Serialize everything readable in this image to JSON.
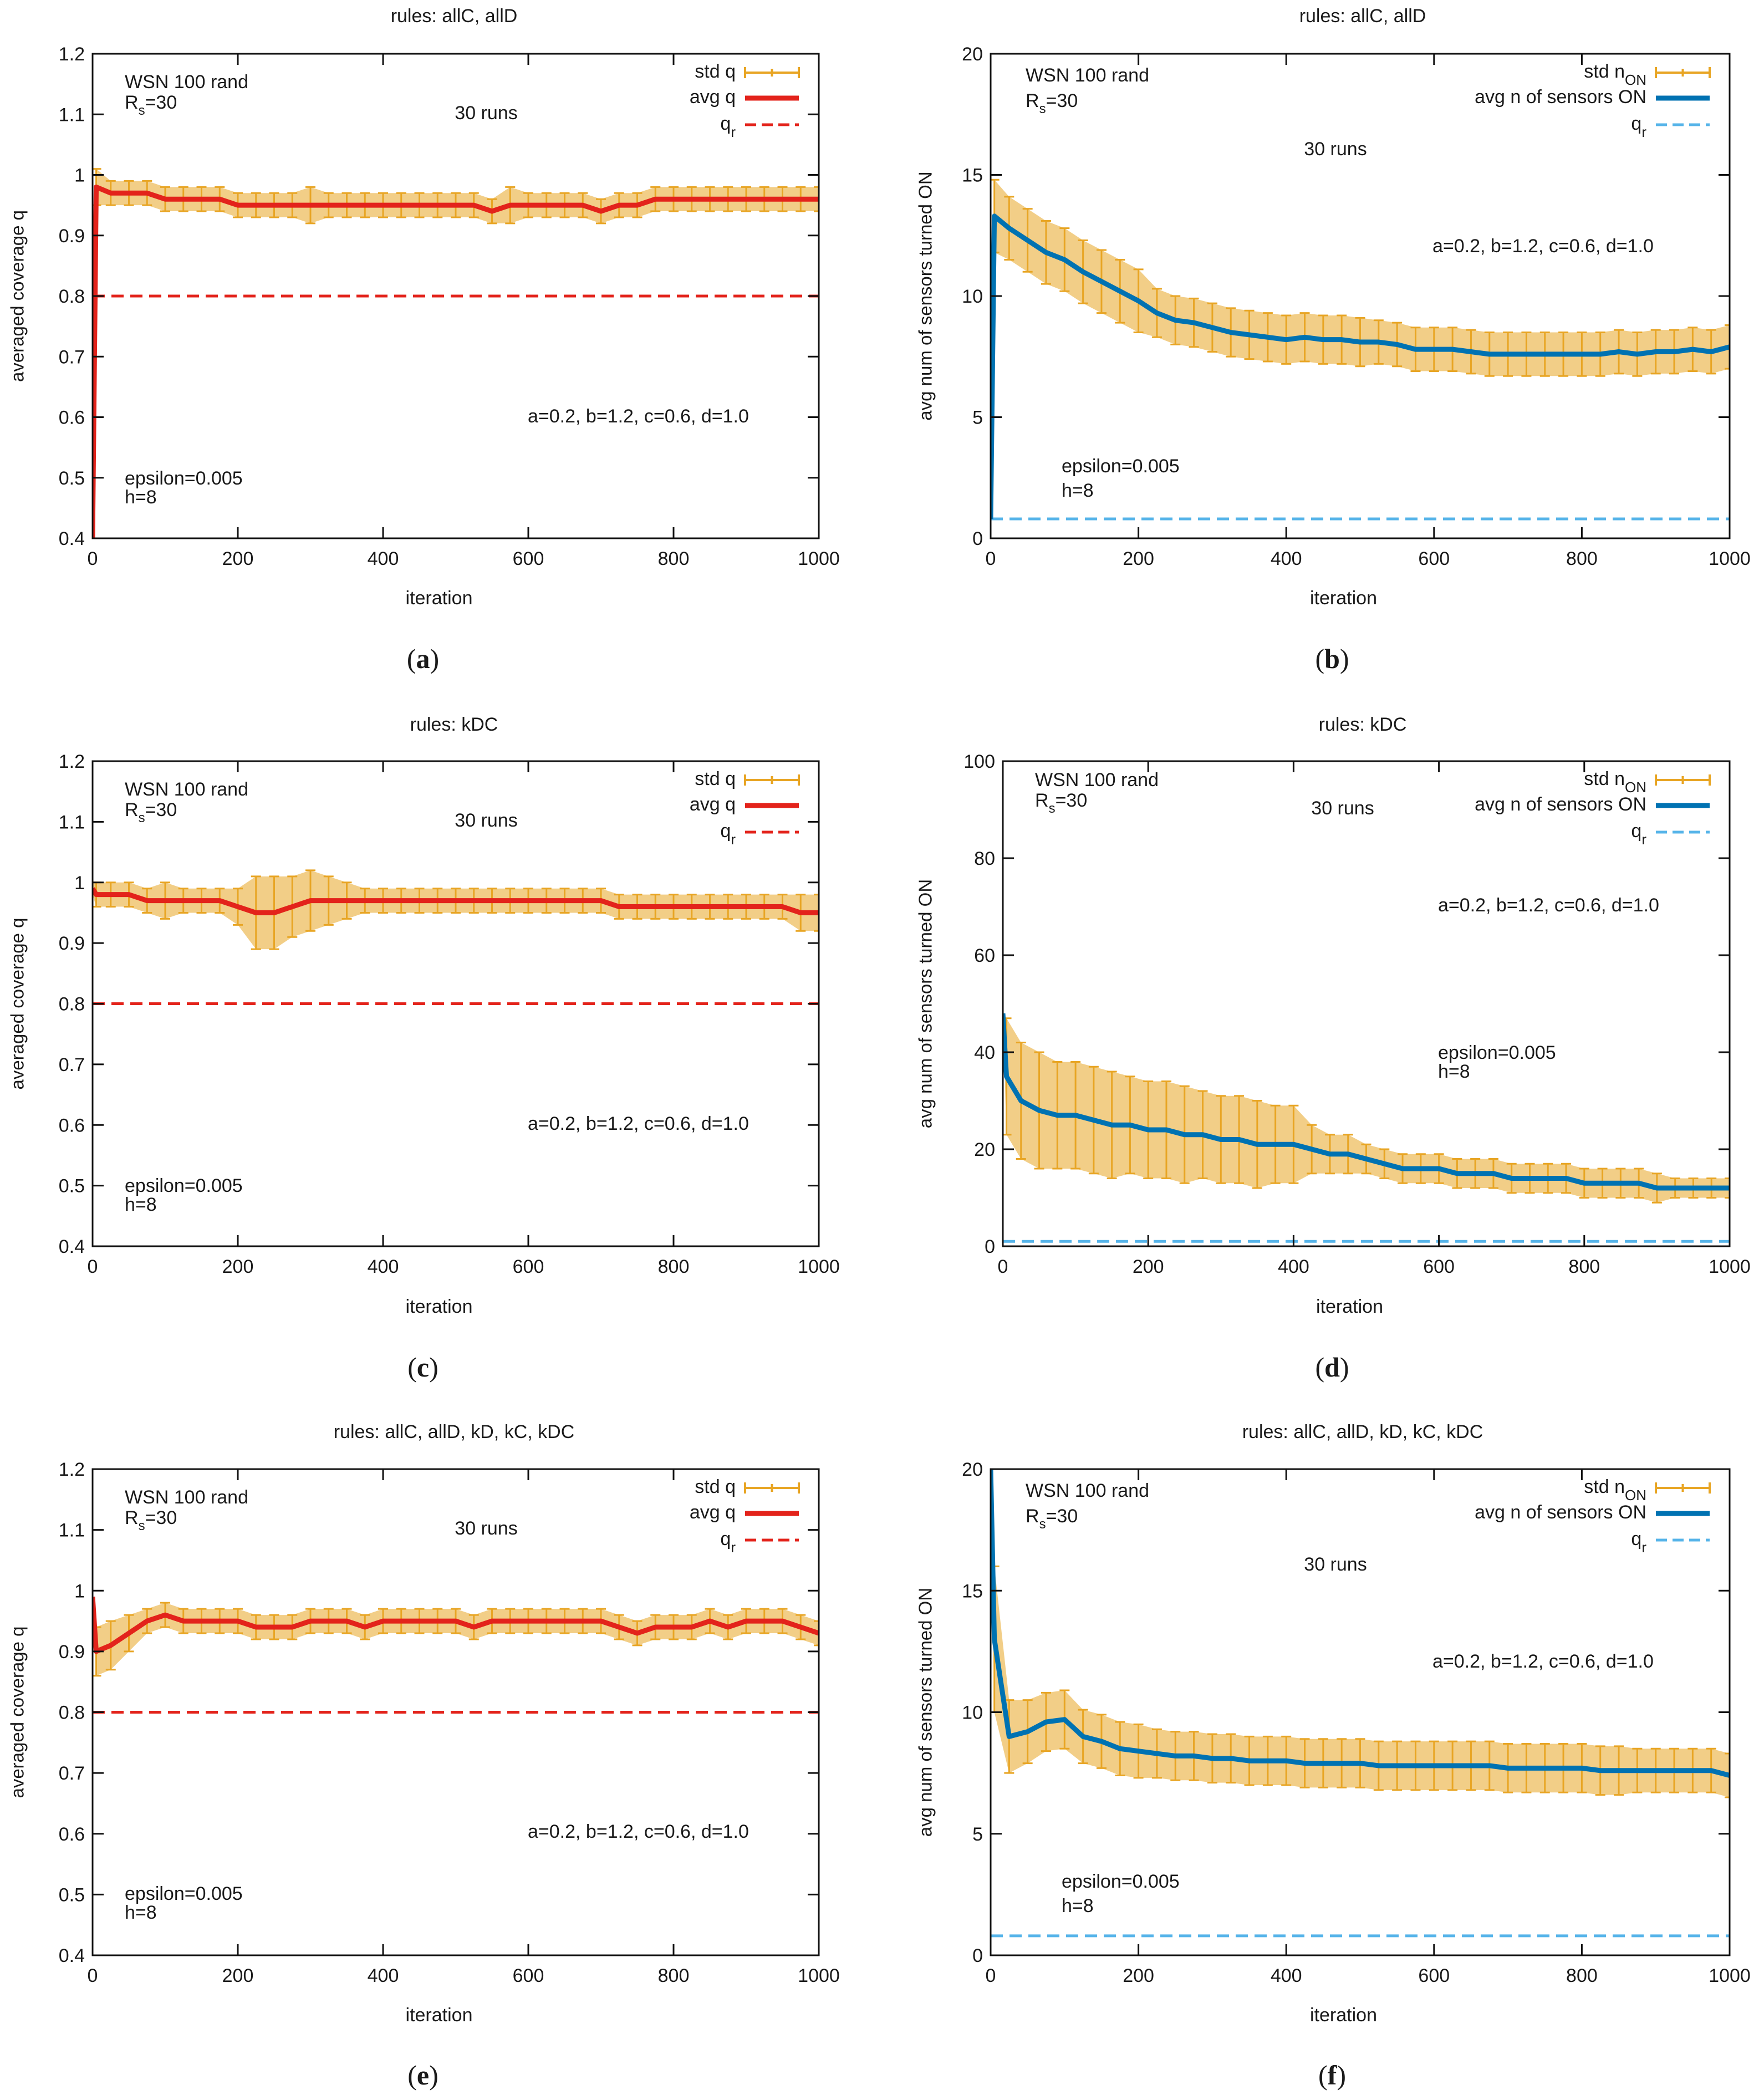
{
  "chart_data": [
    {
      "type": "line",
      "panel": "a",
      "title": "rules: allC, allD",
      "xlabel": "iteration",
      "ylabel": "averaged coverage q",
      "xlim": [
        0,
        1000
      ],
      "ylim": [
        0.4,
        1.2
      ],
      "xticks": [
        0,
        200,
        400,
        600,
        800,
        1000
      ],
      "yticks": [
        0.4,
        0.5,
        0.6,
        0.7,
        0.8,
        0.9,
        1,
        1.1,
        1.2
      ],
      "grid": false,
      "legend_position": "top-right",
      "legend": [
        {
          "text": "std q",
          "sub": "",
          "kind": "errorbar"
        },
        {
          "text": "avg q",
          "sub": "",
          "kind": "line"
        },
        {
          "text": "q",
          "sub": "r",
          "kind": "dashed"
        }
      ],
      "annotations": {
        "wsn": "WSN 100 rand",
        "rs": {
          "text": "R",
          "sub": "s",
          "after": "=30"
        },
        "runs": "30 runs",
        "params": "a=0.2, b=1.2, c=0.6, d=1.0",
        "eps": "epsilon=0.005",
        "h": "h=8"
      },
      "reference_line": 0.8,
      "colors": {
        "avg": "#e3231b",
        "std": "#e8a524",
        "ref": "#e3231b"
      },
      "x": [
        0,
        5,
        25,
        50,
        75,
        100,
        125,
        150,
        175,
        200,
        225,
        250,
        275,
        300,
        325,
        350,
        375,
        400,
        425,
        450,
        475,
        500,
        525,
        550,
        575,
        600,
        625,
        650,
        675,
        700,
        725,
        750,
        775,
        800,
        825,
        850,
        875,
        900,
        925,
        950,
        975,
        1000
      ],
      "avg": [
        0.4,
        0.98,
        0.97,
        0.97,
        0.97,
        0.96,
        0.96,
        0.96,
        0.96,
        0.95,
        0.95,
        0.95,
        0.95,
        0.95,
        0.95,
        0.95,
        0.95,
        0.95,
        0.95,
        0.95,
        0.95,
        0.95,
        0.95,
        0.94,
        0.95,
        0.95,
        0.95,
        0.95,
        0.95,
        0.94,
        0.95,
        0.95,
        0.96,
        0.96,
        0.96,
        0.96,
        0.96,
        0.96,
        0.96,
        0.96,
        0.96,
        0.96
      ],
      "std": [
        0,
        0.03,
        0.02,
        0.02,
        0.02,
        0.02,
        0.02,
        0.02,
        0.02,
        0.02,
        0.02,
        0.02,
        0.02,
        0.03,
        0.02,
        0.02,
        0.02,
        0.02,
        0.02,
        0.02,
        0.02,
        0.02,
        0.02,
        0.02,
        0.03,
        0.02,
        0.02,
        0.02,
        0.02,
        0.02,
        0.02,
        0.02,
        0.02,
        0.02,
        0.02,
        0.02,
        0.02,
        0.02,
        0.02,
        0.02,
        0.02,
        0.02
      ]
    },
    {
      "type": "line",
      "panel": "b",
      "title": "rules: allC, allD",
      "xlabel": "iteration",
      "ylabel": "avg num of sensors turned ON",
      "xlim": [
        0,
        1000
      ],
      "ylim": [
        0,
        20
      ],
      "xticks": [
        0,
        200,
        400,
        600,
        800,
        1000
      ],
      "yticks": [
        0,
        5,
        10,
        15,
        20
      ],
      "grid": false,
      "legend_position": "top-right",
      "legend": [
        {
          "text": "std n",
          "sub": "ON",
          "kind": "errorbar"
        },
        {
          "text": "avg n of sensors ON",
          "sub": "",
          "kind": "line"
        },
        {
          "text": "q",
          "sub": "r",
          "kind": "dashed"
        }
      ],
      "annotations": {
        "wsn": "WSN 100 rand",
        "rs": {
          "text": "R",
          "sub": "s",
          "after": "=30"
        },
        "runs": "30 runs",
        "params": "a=0.2, b=1.2, c=0.6, d=1.0",
        "eps": "epsilon=0.005",
        "h": "h=8"
      },
      "reference_line": 0.8,
      "colors": {
        "avg": "#0072b2",
        "std": "#e8a524",
        "ref": "#56b4e9"
      },
      "x": [
        0,
        5,
        25,
        50,
        75,
        100,
        125,
        150,
        175,
        200,
        225,
        250,
        275,
        300,
        325,
        350,
        375,
        400,
        425,
        450,
        475,
        500,
        525,
        550,
        575,
        600,
        625,
        650,
        675,
        700,
        725,
        750,
        775,
        800,
        825,
        850,
        875,
        900,
        925,
        950,
        975,
        1000
      ],
      "avg": [
        0.8,
        13.3,
        12.8,
        12.3,
        11.8,
        11.5,
        11.0,
        10.6,
        10.2,
        9.8,
        9.3,
        9.0,
        8.9,
        8.7,
        8.5,
        8.4,
        8.3,
        8.2,
        8.3,
        8.2,
        8.2,
        8.1,
        8.1,
        8.0,
        7.8,
        7.8,
        7.8,
        7.7,
        7.6,
        7.6,
        7.6,
        7.6,
        7.6,
        7.6,
        7.6,
        7.7,
        7.6,
        7.7,
        7.7,
        7.8,
        7.7,
        7.9
      ],
      "std": [
        0,
        1.5,
        1.3,
        1.3,
        1.3,
        1.3,
        1.3,
        1.3,
        1.3,
        1.3,
        1.0,
        1.0,
        1.0,
        1.0,
        1.0,
        1.0,
        1.0,
        1.0,
        1.0,
        1.0,
        1.0,
        1.0,
        0.9,
        0.9,
        0.9,
        0.9,
        0.9,
        0.9,
        0.9,
        0.9,
        0.9,
        0.9,
        0.9,
        0.9,
        0.9,
        0.9,
        0.9,
        0.9,
        0.9,
        0.9,
        0.9,
        0.9
      ]
    },
    {
      "type": "line",
      "panel": "c",
      "title": "rules: kDC",
      "xlabel": "iteration",
      "ylabel": "averaged coverage q",
      "xlim": [
        0,
        1000
      ],
      "ylim": [
        0.4,
        1.2
      ],
      "xticks": [
        0,
        200,
        400,
        600,
        800,
        1000
      ],
      "yticks": [
        0.4,
        0.5,
        0.6,
        0.7,
        0.8,
        0.9,
        1,
        1.1,
        1.2
      ],
      "grid": false,
      "legend_position": "top-right",
      "legend": [
        {
          "text": "std q",
          "sub": "",
          "kind": "errorbar"
        },
        {
          "text": "avg q",
          "sub": "",
          "kind": "line"
        },
        {
          "text": "q",
          "sub": "r",
          "kind": "dashed"
        }
      ],
      "annotations": {
        "wsn": "WSN 100 rand",
        "rs": {
          "text": "R",
          "sub": "s",
          "after": "=30"
        },
        "runs": "30 runs",
        "params": "a=0.2, b=1.2, c=0.6, d=1.0",
        "eps": "epsilon=0.005",
        "h": "h=8"
      },
      "reference_line": 0.8,
      "colors": {
        "avg": "#e3231b",
        "std": "#e8a524",
        "ref": "#e3231b"
      },
      "x": [
        0,
        5,
        25,
        50,
        75,
        100,
        125,
        150,
        175,
        200,
        225,
        250,
        275,
        300,
        325,
        350,
        375,
        400,
        425,
        450,
        475,
        500,
        525,
        550,
        575,
        600,
        625,
        650,
        675,
        700,
        725,
        750,
        775,
        800,
        825,
        850,
        875,
        900,
        925,
        950,
        975,
        1000
      ],
      "avg": [
        0.99,
        0.98,
        0.98,
        0.98,
        0.97,
        0.97,
        0.97,
        0.97,
        0.97,
        0.96,
        0.95,
        0.95,
        0.96,
        0.97,
        0.97,
        0.97,
        0.97,
        0.97,
        0.97,
        0.97,
        0.97,
        0.97,
        0.97,
        0.97,
        0.97,
        0.97,
        0.97,
        0.97,
        0.97,
        0.97,
        0.96,
        0.96,
        0.96,
        0.96,
        0.96,
        0.96,
        0.96,
        0.96,
        0.96,
        0.96,
        0.95,
        0.95
      ],
      "std": [
        0.01,
        0.02,
        0.02,
        0.02,
        0.02,
        0.03,
        0.02,
        0.02,
        0.02,
        0.03,
        0.06,
        0.06,
        0.05,
        0.05,
        0.04,
        0.03,
        0.02,
        0.02,
        0.02,
        0.02,
        0.02,
        0.02,
        0.02,
        0.02,
        0.02,
        0.02,
        0.02,
        0.02,
        0.02,
        0.02,
        0.02,
        0.02,
        0.02,
        0.02,
        0.02,
        0.02,
        0.02,
        0.02,
        0.02,
        0.02,
        0.03,
        0.03
      ]
    },
    {
      "type": "line",
      "panel": "d",
      "title": "rules: kDC",
      "xlabel": "iteration",
      "ylabel": "avg num of sensors turned ON",
      "xlim": [
        0,
        1000
      ],
      "ylim": [
        0,
        100
      ],
      "xticks": [
        0,
        200,
        400,
        600,
        800,
        1000
      ],
      "yticks": [
        0,
        20,
        40,
        60,
        80,
        100
      ],
      "grid": false,
      "legend_position": "top-right",
      "legend": [
        {
          "text": "std n",
          "sub": "ON",
          "kind": "errorbar"
        },
        {
          "text": "avg n of sensors ON",
          "sub": "",
          "kind": "line"
        },
        {
          "text": "q",
          "sub": "r",
          "kind": "dashed"
        }
      ],
      "annotations": {
        "wsn": "WSN 100 rand",
        "rs": {
          "text": "R",
          "sub": "s",
          "after": "=30"
        },
        "runs": "30 runs",
        "params": "a=0.2, b=1.2, c=0.6, d=1.0",
        "eps": "epsilon=0.005",
        "h": "h=8"
      },
      "reference_line": 1.0,
      "colors": {
        "avg": "#0072b2",
        "std": "#e8a524",
        "ref": "#56b4e9"
      },
      "x": [
        0,
        5,
        25,
        50,
        75,
        100,
        125,
        150,
        175,
        200,
        225,
        250,
        275,
        300,
        325,
        350,
        375,
        400,
        425,
        450,
        475,
        500,
        525,
        550,
        575,
        600,
        625,
        650,
        675,
        700,
        725,
        750,
        775,
        800,
        825,
        850,
        875,
        900,
        925,
        950,
        975,
        1000
      ],
      "avg": [
        48,
        35,
        30,
        28,
        27,
        27,
        26,
        25,
        25,
        24,
        24,
        23,
        23,
        22,
        22,
        21,
        21,
        21,
        20,
        19,
        19,
        18,
        17,
        16,
        16,
        16,
        15,
        15,
        15,
        14,
        14,
        14,
        14,
        13,
        13,
        13,
        13,
        12,
        12,
        12,
        12,
        12
      ],
      "std": [
        0,
        12,
        12,
        12,
        11,
        11,
        11,
        11,
        10,
        10,
        10,
        10,
        9,
        9,
        9,
        9,
        8,
        8,
        5,
        4,
        4,
        3,
        3,
        3,
        3,
        3,
        3,
        3,
        3,
        3,
        3,
        3,
        3,
        3,
        3,
        3,
        3,
        3,
        2,
        2,
        2,
        2
      ]
    },
    {
      "type": "line",
      "panel": "e",
      "title": "rules: allC, allD, kD, kC, kDC",
      "xlabel": "iteration",
      "ylabel": "averaged coverage q",
      "xlim": [
        0,
        1000
      ],
      "ylim": [
        0.4,
        1.2
      ],
      "xticks": [
        0,
        200,
        400,
        600,
        800,
        1000
      ],
      "yticks": [
        0.4,
        0.5,
        0.6,
        0.7,
        0.8,
        0.9,
        1,
        1.1,
        1.2
      ],
      "grid": false,
      "legend_position": "top-right",
      "legend": [
        {
          "text": "std q",
          "sub": "",
          "kind": "errorbar"
        },
        {
          "text": "avg q",
          "sub": "",
          "kind": "line"
        },
        {
          "text": "q",
          "sub": "r",
          "kind": "dashed"
        }
      ],
      "annotations": {
        "wsn": "WSN 100 rand",
        "rs": {
          "text": "R",
          "sub": "s",
          "after": "=30"
        },
        "runs": "30 runs",
        "params": "a=0.2, b=1.2, c=0.6, d=1.0",
        "eps": "epsilon=0.005",
        "h": "h=8"
      },
      "reference_line": 0.8,
      "colors": {
        "avg": "#e3231b",
        "std": "#e8a524",
        "ref": "#e3231b"
      },
      "x": [
        0,
        5,
        25,
        50,
        75,
        100,
        125,
        150,
        175,
        200,
        225,
        250,
        275,
        300,
        325,
        350,
        375,
        400,
        425,
        450,
        475,
        500,
        525,
        550,
        575,
        600,
        625,
        650,
        675,
        700,
        725,
        750,
        775,
        800,
        825,
        850,
        875,
        900,
        925,
        950,
        975,
        1000
      ],
      "avg": [
        0.99,
        0.9,
        0.91,
        0.93,
        0.95,
        0.96,
        0.95,
        0.95,
        0.95,
        0.95,
        0.94,
        0.94,
        0.94,
        0.95,
        0.95,
        0.95,
        0.94,
        0.95,
        0.95,
        0.95,
        0.95,
        0.95,
        0.94,
        0.95,
        0.95,
        0.95,
        0.95,
        0.95,
        0.95,
        0.95,
        0.94,
        0.93,
        0.94,
        0.94,
        0.94,
        0.95,
        0.94,
        0.95,
        0.95,
        0.95,
        0.94,
        0.93
      ],
      "std": [
        0,
        0.04,
        0.04,
        0.03,
        0.02,
        0.02,
        0.02,
        0.02,
        0.02,
        0.02,
        0.02,
        0.02,
        0.02,
        0.02,
        0.02,
        0.02,
        0.02,
        0.02,
        0.02,
        0.02,
        0.02,
        0.02,
        0.02,
        0.02,
        0.02,
        0.02,
        0.02,
        0.02,
        0.02,
        0.02,
        0.02,
        0.02,
        0.02,
        0.02,
        0.02,
        0.02,
        0.02,
        0.02,
        0.02,
        0.02,
        0.02,
        0.02
      ]
    },
    {
      "type": "line",
      "panel": "f",
      "title": "rules: allC, allD, kD, kC, kDC",
      "xlabel": "iteration",
      "ylabel": "avg num of sensors turned ON",
      "xlim": [
        0,
        1000
      ],
      "ylim": [
        0,
        20
      ],
      "xticks": [
        0,
        200,
        400,
        600,
        800,
        1000
      ],
      "yticks": [
        0,
        5,
        10,
        15,
        20
      ],
      "grid": false,
      "legend_position": "top-right",
      "legend": [
        {
          "text": "std n",
          "sub": "ON",
          "kind": "errorbar"
        },
        {
          "text": "avg n of sensors ON",
          "sub": "",
          "kind": "line"
        },
        {
          "text": "q",
          "sub": "r",
          "kind": "dashed"
        }
      ],
      "annotations": {
        "wsn": "WSN 100 rand",
        "rs": {
          "text": "R",
          "sub": "s",
          "after": "=30"
        },
        "runs": "30 runs",
        "params": "a=0.2, b=1.2, c=0.6, d=1.0",
        "eps": "epsilon=0.005",
        "h": "h=8"
      },
      "reference_line": 0.8,
      "colors": {
        "avg": "#0072b2",
        "std": "#e8a524",
        "ref": "#56b4e9"
      },
      "x": [
        0,
        5,
        25,
        50,
        75,
        100,
        125,
        150,
        175,
        200,
        225,
        250,
        275,
        300,
        325,
        350,
        375,
        400,
        425,
        450,
        475,
        500,
        525,
        550,
        575,
        600,
        625,
        650,
        675,
        700,
        725,
        750,
        775,
        800,
        825,
        850,
        875,
        900,
        925,
        950,
        975,
        1000
      ],
      "avg": [
        20,
        13,
        9.0,
        9.2,
        9.6,
        9.7,
        9.0,
        8.8,
        8.5,
        8.4,
        8.3,
        8.2,
        8.2,
        8.1,
        8.1,
        8.0,
        8.0,
        8.0,
        7.9,
        7.9,
        7.9,
        7.9,
        7.8,
        7.8,
        7.8,
        7.8,
        7.8,
        7.8,
        7.8,
        7.7,
        7.7,
        7.7,
        7.7,
        7.7,
        7.6,
        7.6,
        7.6,
        7.6,
        7.6,
        7.6,
        7.6,
        7.4
      ],
      "std": [
        0,
        3,
        1.5,
        1.3,
        1.2,
        1.2,
        1.1,
        1.1,
        1.1,
        1.1,
        1.0,
        1.0,
        1.0,
        1.0,
        1.0,
        1.0,
        1.0,
        1.0,
        1.0,
        1.0,
        1.0,
        1.0,
        1.0,
        1.0,
        1.0,
        1.0,
        1.0,
        1.0,
        1.0,
        1.0,
        1.0,
        1.0,
        1.0,
        1.0,
        1.0,
        1.0,
        0.9,
        0.9,
        0.9,
        0.9,
        0.9,
        0.9
      ]
    }
  ]
}
